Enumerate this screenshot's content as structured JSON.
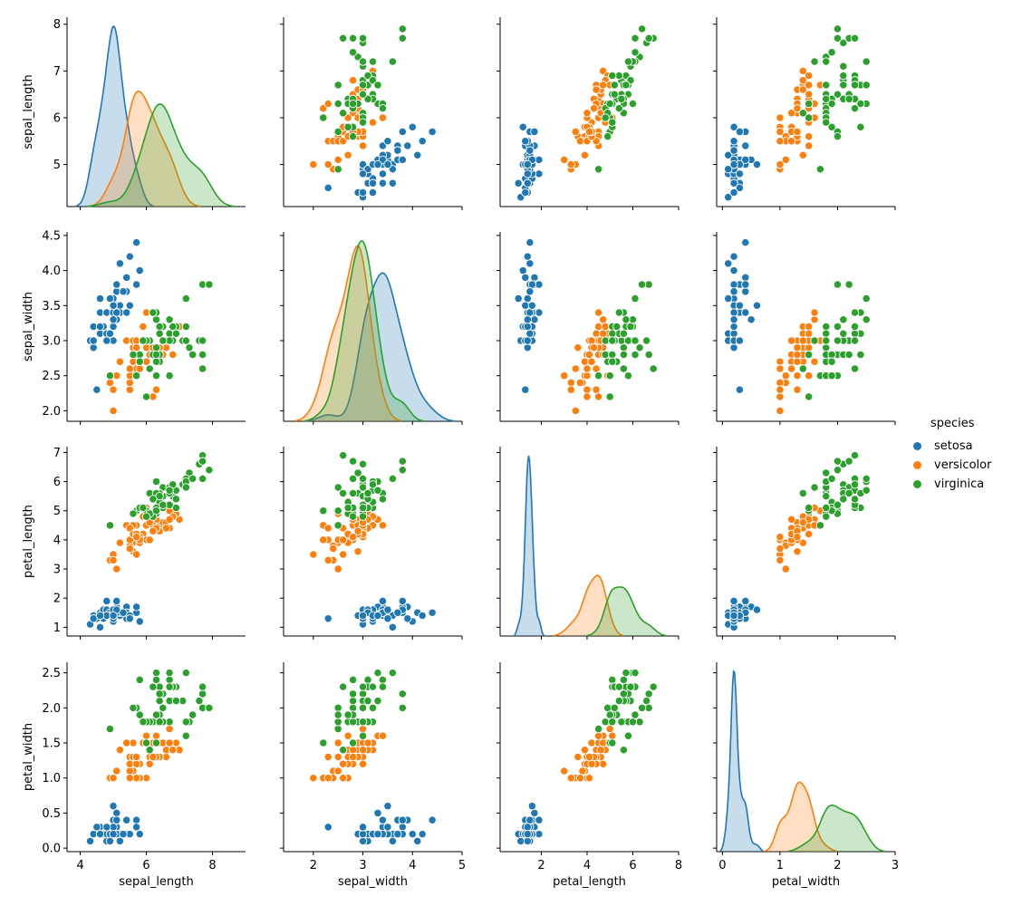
{
  "chart_data": {
    "type": "scatter",
    "title": "",
    "variables": [
      "sepal_length",
      "sepal_width",
      "petal_length",
      "petal_width"
    ],
    "variable_ticks": {
      "sepal_length": {
        "range": [
          3.6,
          9.0
        ],
        "ticks": [
          4,
          6,
          8
        ],
        "row_ticks": [
          5,
          6,
          7,
          8
        ],
        "row_range": [
          4.1,
          8.15
        ]
      },
      "sepal_width": {
        "range": [
          1.4,
          5.0
        ],
        "ticks": [
          2,
          3,
          4,
          5
        ],
        "row_ticks": [
          2.0,
          2.5,
          3.0,
          3.5,
          4.0,
          4.5
        ],
        "row_range": [
          1.85,
          4.55
        ]
      },
      "petal_length": {
        "range": [
          0.2,
          8.0
        ],
        "ticks": [
          2,
          4,
          6,
          8
        ],
        "row_ticks": [
          1,
          2,
          3,
          4,
          5,
          6,
          7
        ],
        "row_range": [
          0.7,
          7.2
        ]
      },
      "petal_width": {
        "range": [
          -0.1,
          3.0
        ],
        "ticks": [
          0,
          1,
          2,
          3
        ],
        "row_ticks": [
          0.0,
          0.5,
          1.0,
          1.5,
          2.0,
          2.5
        ],
        "row_range": [
          -0.05,
          2.65
        ]
      }
    },
    "legend": {
      "title": "species",
      "placement": "right"
    },
    "series": [
      {
        "name": "setosa",
        "color": "#1f77b4",
        "points": [
          [
            5.1,
            3.5,
            1.4,
            0.2
          ],
          [
            4.9,
            3.0,
            1.4,
            0.2
          ],
          [
            4.7,
            3.2,
            1.3,
            0.2
          ],
          [
            4.6,
            3.1,
            1.5,
            0.2
          ],
          [
            5.0,
            3.6,
            1.4,
            0.2
          ],
          [
            5.4,
            3.9,
            1.7,
            0.4
          ],
          [
            4.6,
            3.4,
            1.4,
            0.3
          ],
          [
            5.0,
            3.4,
            1.5,
            0.2
          ],
          [
            4.4,
            2.9,
            1.4,
            0.2
          ],
          [
            4.9,
            3.1,
            1.5,
            0.1
          ],
          [
            5.4,
            3.7,
            1.5,
            0.2
          ],
          [
            4.8,
            3.4,
            1.6,
            0.2
          ],
          [
            4.8,
            3.0,
            1.4,
            0.1
          ],
          [
            4.3,
            3.0,
            1.1,
            0.1
          ],
          [
            5.8,
            4.0,
            1.2,
            0.2
          ],
          [
            5.7,
            4.4,
            1.5,
            0.4
          ],
          [
            5.4,
            3.9,
            1.3,
            0.4
          ],
          [
            5.1,
            3.5,
            1.4,
            0.3
          ],
          [
            5.7,
            3.8,
            1.7,
            0.3
          ],
          [
            5.1,
            3.8,
            1.5,
            0.3
          ],
          [
            5.4,
            3.4,
            1.7,
            0.2
          ],
          [
            5.1,
            3.7,
            1.5,
            0.4
          ],
          [
            4.6,
            3.6,
            1.0,
            0.2
          ],
          [
            5.1,
            3.3,
            1.7,
            0.5
          ],
          [
            4.8,
            3.4,
            1.9,
            0.2
          ],
          [
            5.0,
            3.0,
            1.6,
            0.2
          ],
          [
            5.0,
            3.4,
            1.6,
            0.4
          ],
          [
            5.2,
            3.5,
            1.5,
            0.2
          ],
          [
            5.2,
            3.4,
            1.4,
            0.2
          ],
          [
            4.7,
            3.2,
            1.6,
            0.2
          ],
          [
            4.8,
            3.1,
            1.6,
            0.2
          ],
          [
            5.4,
            3.4,
            1.5,
            0.4
          ],
          [
            5.2,
            4.1,
            1.5,
            0.1
          ],
          [
            5.5,
            4.2,
            1.4,
            0.2
          ],
          [
            4.9,
            3.1,
            1.5,
            0.2
          ],
          [
            5.0,
            3.2,
            1.2,
            0.2
          ],
          [
            5.5,
            3.5,
            1.3,
            0.2
          ],
          [
            4.9,
            3.6,
            1.4,
            0.1
          ],
          [
            4.4,
            3.0,
            1.3,
            0.2
          ],
          [
            5.1,
            3.4,
            1.5,
            0.2
          ],
          [
            5.0,
            3.5,
            1.3,
            0.3
          ],
          [
            4.5,
            2.3,
            1.3,
            0.3
          ],
          [
            4.4,
            3.2,
            1.3,
            0.2
          ],
          [
            5.0,
            3.5,
            1.6,
            0.6
          ],
          [
            5.1,
            3.8,
            1.9,
            0.4
          ],
          [
            4.8,
            3.0,
            1.4,
            0.3
          ],
          [
            5.1,
            3.8,
            1.6,
            0.2
          ],
          [
            4.6,
            3.2,
            1.4,
            0.2
          ],
          [
            5.3,
            3.7,
            1.5,
            0.2
          ],
          [
            5.0,
            3.3,
            1.4,
            0.2
          ]
        ]
      },
      {
        "name": "versicolor",
        "color": "#ff7f0e",
        "points": [
          [
            7.0,
            3.2,
            4.7,
            1.4
          ],
          [
            6.4,
            3.2,
            4.5,
            1.5
          ],
          [
            6.9,
            3.1,
            4.9,
            1.5
          ],
          [
            5.5,
            2.3,
            4.0,
            1.3
          ],
          [
            6.5,
            2.8,
            4.6,
            1.5
          ],
          [
            5.7,
            2.8,
            4.5,
            1.3
          ],
          [
            6.3,
            3.3,
            4.7,
            1.6
          ],
          [
            4.9,
            2.4,
            3.3,
            1.0
          ],
          [
            6.6,
            2.9,
            4.6,
            1.3
          ],
          [
            5.2,
            2.7,
            3.9,
            1.4
          ],
          [
            5.0,
            2.0,
            3.5,
            1.0
          ],
          [
            5.9,
            3.0,
            4.2,
            1.5
          ],
          [
            6.0,
            2.2,
            4.0,
            1.0
          ],
          [
            6.1,
            2.9,
            4.7,
            1.4
          ],
          [
            5.6,
            2.9,
            3.6,
            1.3
          ],
          [
            6.7,
            3.1,
            4.4,
            1.4
          ],
          [
            5.6,
            3.0,
            4.5,
            1.5
          ],
          [
            5.8,
            2.7,
            4.1,
            1.0
          ],
          [
            6.2,
            2.2,
            4.5,
            1.5
          ],
          [
            5.6,
            2.5,
            3.9,
            1.1
          ],
          [
            5.9,
            3.2,
            4.8,
            1.8
          ],
          [
            6.1,
            2.8,
            4.0,
            1.3
          ],
          [
            6.3,
            2.5,
            4.9,
            1.5
          ],
          [
            6.1,
            2.8,
            4.7,
            1.2
          ],
          [
            6.4,
            2.9,
            4.3,
            1.3
          ],
          [
            6.6,
            3.0,
            4.4,
            1.4
          ],
          [
            6.8,
            2.8,
            4.8,
            1.4
          ],
          [
            6.7,
            3.0,
            5.0,
            1.7
          ],
          [
            6.0,
            2.9,
            4.5,
            1.5
          ],
          [
            5.7,
            2.6,
            3.5,
            1.0
          ],
          [
            5.5,
            2.4,
            3.8,
            1.1
          ],
          [
            5.5,
            2.4,
            3.7,
            1.0
          ],
          [
            5.8,
            2.7,
            3.9,
            1.2
          ],
          [
            6.0,
            2.7,
            5.1,
            1.6
          ],
          [
            5.4,
            3.0,
            4.5,
            1.5
          ],
          [
            6.0,
            3.4,
            4.5,
            1.6
          ],
          [
            6.7,
            3.1,
            4.7,
            1.5
          ],
          [
            6.3,
            2.3,
            4.4,
            1.3
          ],
          [
            5.6,
            3.0,
            4.1,
            1.3
          ],
          [
            5.5,
            2.5,
            4.0,
            1.3
          ],
          [
            5.5,
            2.6,
            4.4,
            1.2
          ],
          [
            6.1,
            3.0,
            4.6,
            1.4
          ],
          [
            5.8,
            2.6,
            4.0,
            1.2
          ],
          [
            5.0,
            2.3,
            3.3,
            1.0
          ],
          [
            5.6,
            2.7,
            4.2,
            1.3
          ],
          [
            5.7,
            3.0,
            4.2,
            1.2
          ],
          [
            5.7,
            2.9,
            4.2,
            1.3
          ],
          [
            6.2,
            2.9,
            4.3,
            1.3
          ],
          [
            5.1,
            2.5,
            3.0,
            1.1
          ],
          [
            5.7,
            2.8,
            4.1,
            1.3
          ]
        ]
      },
      {
        "name": "virginica",
        "color": "#2ca02c",
        "points": [
          [
            6.3,
            3.3,
            6.0,
            2.5
          ],
          [
            5.8,
            2.7,
            5.1,
            1.9
          ],
          [
            7.1,
            3.0,
            5.9,
            2.1
          ],
          [
            6.3,
            2.9,
            5.6,
            1.8
          ],
          [
            6.5,
            3.0,
            5.8,
            2.2
          ],
          [
            7.6,
            3.0,
            6.6,
            2.1
          ],
          [
            4.9,
            2.5,
            4.5,
            1.7
          ],
          [
            7.3,
            2.9,
            6.3,
            1.8
          ],
          [
            6.7,
            2.5,
            5.8,
            1.8
          ],
          [
            7.2,
            3.6,
            6.1,
            2.5
          ],
          [
            6.5,
            3.2,
            5.1,
            2.0
          ],
          [
            6.4,
            2.7,
            5.3,
            1.9
          ],
          [
            6.8,
            3.0,
            5.5,
            2.1
          ],
          [
            5.7,
            2.5,
            5.0,
            2.0
          ],
          [
            5.8,
            2.8,
            5.1,
            2.4
          ],
          [
            6.4,
            3.2,
            5.3,
            2.3
          ],
          [
            6.5,
            3.0,
            5.5,
            1.8
          ],
          [
            7.7,
            3.8,
            6.7,
            2.2
          ],
          [
            7.7,
            2.6,
            6.9,
            2.3
          ],
          [
            6.0,
            2.2,
            5.0,
            1.5
          ],
          [
            6.9,
            3.2,
            5.7,
            2.3
          ],
          [
            5.6,
            2.8,
            4.9,
            2.0
          ],
          [
            7.7,
            2.8,
            6.7,
            2.0
          ],
          [
            6.3,
            2.7,
            4.9,
            1.8
          ],
          [
            6.7,
            3.3,
            5.7,
            2.1
          ],
          [
            7.2,
            3.2,
            6.0,
            1.8
          ],
          [
            6.2,
            2.8,
            4.8,
            1.8
          ],
          [
            6.1,
            3.0,
            4.9,
            1.8
          ],
          [
            6.4,
            2.8,
            5.6,
            2.1
          ],
          [
            7.2,
            3.0,
            5.8,
            1.6
          ],
          [
            7.4,
            2.8,
            6.1,
            1.9
          ],
          [
            7.9,
            3.8,
            6.4,
            2.0
          ],
          [
            6.4,
            2.8,
            5.6,
            2.2
          ],
          [
            6.3,
            2.8,
            5.1,
            1.5
          ],
          [
            6.1,
            2.6,
            5.6,
            1.4
          ],
          [
            7.7,
            3.0,
            6.1,
            2.3
          ],
          [
            6.3,
            3.4,
            5.6,
            2.4
          ],
          [
            6.4,
            3.1,
            5.5,
            1.8
          ],
          [
            6.0,
            3.0,
            4.8,
            1.8
          ],
          [
            6.9,
            3.1,
            5.4,
            2.1
          ],
          [
            6.7,
            3.1,
            5.6,
            2.4
          ],
          [
            6.9,
            3.1,
            5.1,
            2.3
          ],
          [
            5.8,
            2.7,
            5.1,
            1.9
          ],
          [
            6.8,
            3.2,
            5.9,
            2.3
          ],
          [
            6.7,
            3.3,
            5.7,
            2.5
          ],
          [
            6.7,
            3.0,
            5.2,
            2.3
          ],
          [
            6.3,
            2.5,
            5.0,
            1.9
          ],
          [
            6.5,
            3.0,
            5.2,
            2.0
          ],
          [
            6.2,
            3.4,
            5.4,
            2.3
          ],
          [
            5.9,
            3.0,
            5.1,
            1.8
          ]
        ]
      }
    ]
  }
}
